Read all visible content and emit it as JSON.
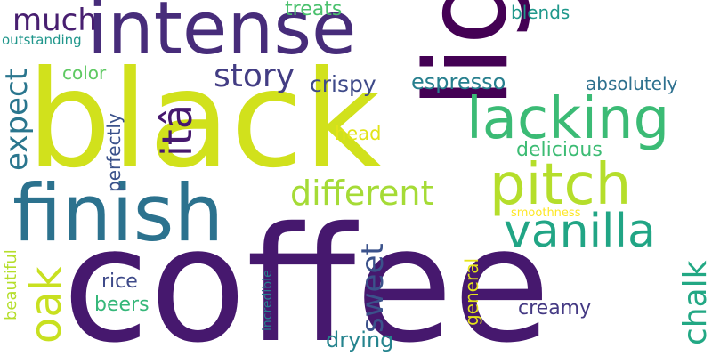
{
  "words": [
    {
      "text": "coffee",
      "color": "#46186e"
    },
    {
      "text": "black",
      "color": "#d1e11c"
    },
    {
      "text": "intense",
      "color": "#472c7a"
    },
    {
      "text": "light",
      "color": "#440154"
    },
    {
      "text": "finish",
      "color": "#2c728e"
    },
    {
      "text": "lacking",
      "color": "#3bbb75"
    },
    {
      "text": "pitch",
      "color": "#b5de2b"
    },
    {
      "text": "vanilla",
      "color": "#21a585"
    },
    {
      "text": "different",
      "color": "#a5db36"
    },
    {
      "text": "itâ",
      "color": "#46186e"
    },
    {
      "text": "story",
      "color": "#433d84"
    },
    {
      "text": "much",
      "color": "#481f70"
    },
    {
      "text": "expect",
      "color": "#2a768e"
    },
    {
      "text": "oak",
      "color": "#c8e020"
    },
    {
      "text": "sweet",
      "color": "#3b528b"
    },
    {
      "text": "chalk",
      "color": "#22a884"
    },
    {
      "text": "crispy",
      "color": "#3e4a89"
    },
    {
      "text": "espresso",
      "color": "#277f8e"
    },
    {
      "text": "absolutely",
      "color": "#2d708e"
    },
    {
      "text": "delicious",
      "color": "#3dbc74"
    },
    {
      "text": "head",
      "color": "#e2e418"
    },
    {
      "text": "color",
      "color": "#5ec962"
    },
    {
      "text": "perfectly",
      "color": "#3b528b"
    },
    {
      "text": "treats",
      "color": "#4ac16d"
    },
    {
      "text": "blends",
      "color": "#1f988b"
    },
    {
      "text": "outstanding",
      "color": "#1f968b"
    },
    {
      "text": "rice",
      "color": "#3e4a89"
    },
    {
      "text": "beers",
      "color": "#35b779"
    },
    {
      "text": "drying",
      "color": "#25848e"
    },
    {
      "text": "creamy",
      "color": "#443983"
    },
    {
      "text": "general",
      "color": "#e5e419"
    },
    {
      "text": "beautiful",
      "color": "#b5de2b"
    },
    {
      "text": "incredible",
      "color": "#287c8e"
    },
    {
      "text": "smoothness",
      "color": "#fde725"
    }
  ]
}
